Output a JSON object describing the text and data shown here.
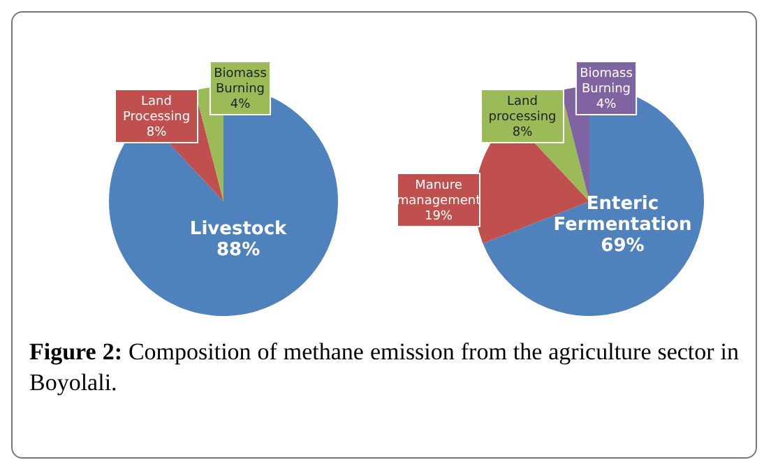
{
  "chart_data": [
    {
      "type": "pie",
      "categories": [
        "Livestock",
        "Land Processing",
        "Biomass Burning"
      ],
      "values": [
        88,
        8,
        4
      ],
      "value_labels": [
        "88%",
        "8%",
        "4%"
      ],
      "colors": [
        "#4f81bd",
        "#c0504d",
        "#9bbb59"
      ],
      "legend": false
    },
    {
      "type": "pie",
      "categories": [
        "Enteric Fermentation",
        "Manure management",
        "Land processing",
        "Biomass Burning"
      ],
      "values": [
        69,
        19,
        8,
        4
      ],
      "value_labels": [
        "69%",
        "19%",
        "8%",
        "4%"
      ],
      "colors": [
        "#4f81bd",
        "#c0504d",
        "#9bbb59",
        "#8064a2"
      ],
      "legend": false,
      "annotations": [
        "Figure 2: Composition of methane emission from the agriculture sector in Boyolali."
      ]
    }
  ]
}
